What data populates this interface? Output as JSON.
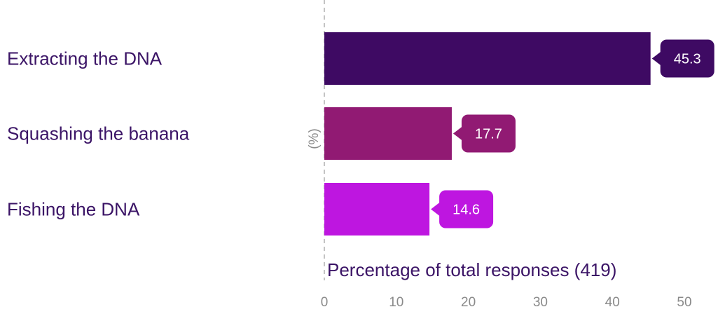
{
  "chart_data": {
    "type": "bar",
    "orientation": "horizontal",
    "categories": [
      "Extracting the DNA",
      "Squashing the banana",
      "Fishing the DNA"
    ],
    "values": [
      45.3,
      17.7,
      14.6
    ],
    "value_labels": [
      "45.3",
      "17.7",
      "14.6"
    ],
    "colors": [
      "#3e0a63",
      "#911a73",
      "#be16e0"
    ],
    "xlabel": "Percentage of total responses (419)",
    "unit_label": "(%)",
    "xlim": [
      0,
      50
    ],
    "xticks": [
      0,
      10,
      20,
      30,
      40,
      50
    ],
    "xtick_labels": [
      "0",
      "10",
      "20",
      "30",
      "40",
      "50"
    ],
    "grid": false,
    "zero_line": "dashed"
  }
}
